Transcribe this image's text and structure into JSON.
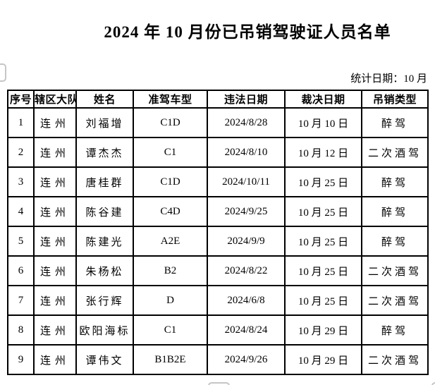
{
  "page": {
    "title": "2024 年 10 月份已吊销驾驶证人员名单",
    "stat_date": "统计日期：10 月"
  },
  "table": {
    "headers": [
      "序号",
      "辖区大队",
      "姓名",
      "准驾车型",
      "违法日期",
      "裁决日期",
      "吊销类型"
    ],
    "rows": [
      [
        "1",
        "连州",
        "刘福增",
        "C1D",
        "2024/8/28",
        "10 月 10 日",
        "醉驾"
      ],
      [
        "2",
        "连州",
        "谭杰杰",
        "C1",
        "2024/8/10",
        "10 月 12 日",
        "二次酒驾"
      ],
      [
        "3",
        "连州",
        "唐桂群",
        "C1D",
        "2024/10/11",
        "10 月 25 日",
        "醉驾"
      ],
      [
        "4",
        "连州",
        "陈谷建",
        "C4D",
        "2024/9/25",
        "10 月 25 日",
        "醉驾"
      ],
      [
        "5",
        "连州",
        "陈建光",
        "A2E",
        "2024/9/9",
        "10 月 25 日",
        "醉驾"
      ],
      [
        "6",
        "连州",
        "朱杨松",
        "B2",
        "2024/8/22",
        "10 月 25 日",
        "二次酒驾"
      ],
      [
        "7",
        "连州",
        "张行辉",
        "D",
        "2024/6/8",
        "10 月 25 日",
        "二次酒驾"
      ],
      [
        "8",
        "连州",
        "欧阳海标",
        "C1",
        "2024/8/24",
        "10 月 29 日",
        "醉驾"
      ],
      [
        "9",
        "连州",
        "谭伟文",
        "B1B2E",
        "2024/9/26",
        "10 月 29 日",
        "二次酒驾"
      ]
    ]
  },
  "colors": {
    "text": "#000000",
    "table_border": "#000000",
    "background": "#ffffff",
    "fragment_border": "#c6c6c6"
  }
}
